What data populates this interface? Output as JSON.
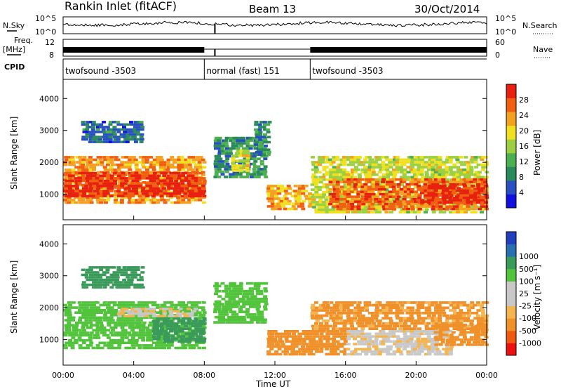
{
  "header": {
    "station": "Rankin Inlet (fitACF)",
    "beam": "Beam 13",
    "date": "30/Oct/2014"
  },
  "aux_panels": {
    "nsky_label": "N.Sky",
    "nsearch_label": "N.Search",
    "noise_tick_top": "10^5",
    "noise_tick_bottom": "10^0",
    "freq_label_1": "Freq.",
    "freq_label_2": "[MHz]",
    "freq_tick_top": "12",
    "freq_tick_bottom": "8",
    "nave_label": "Nave",
    "nave_tick_top": "60",
    "nave_tick_bottom": "0",
    "cpid_label": "CPID"
  },
  "cpid_segments": [
    {
      "label": "twofsound -3503",
      "start_hour": 0.0,
      "end_hour": 8.0
    },
    {
      "label": "normal (fast) 151",
      "start_hour": 8.0,
      "end_hour": 14.0
    },
    {
      "label": "twofsound -3503",
      "start_hour": 14.0,
      "end_hour": 24.0
    }
  ],
  "colors": {
    "power_scale": [
      "#1010e0",
      "#2850c0",
      "#2a8a5a",
      "#4caf50",
      "#9cd040",
      "#f0e020",
      "#f4a020",
      "#f06010",
      "#e82010"
    ],
    "velocity_scale": [
      "#ee1010",
      "#f05a10",
      "#f09028",
      "#f4b450",
      "#c8c8c8",
      "#c8c8c8",
      "#52c43c",
      "#3a9a5a",
      "#2a70b0",
      "#2040c0"
    ]
  },
  "chart_data": [
    {
      "type": "heatmap",
      "name": "power",
      "xlabel": "",
      "ylabel": "Slant Range [km]",
      "xlim_hours": [
        0,
        24
      ],
      "ylim_km": [
        200,
        4600
      ],
      "yticks": [
        1000,
        2000,
        3000,
        4000
      ],
      "colorbar_label": "Power [dB]",
      "colorbar_ticks": [
        4,
        8,
        12,
        16,
        20,
        24,
        28
      ],
      "colorbar_range": [
        0,
        32
      ],
      "regions": [
        {
          "t0": 0.0,
          "t1": 8.0,
          "r0": 700,
          "r1": 2200,
          "value": 24
        },
        {
          "t0": 0.0,
          "t1": 8.0,
          "r0": 900,
          "r1": 1700,
          "value": 30
        },
        {
          "t0": 1.0,
          "t1": 4.5,
          "r0": 2600,
          "r1": 3300,
          "value": 7
        },
        {
          "t0": 8.5,
          "t1": 11.5,
          "r0": 1500,
          "r1": 2800,
          "value": 10
        },
        {
          "t0": 9.5,
          "t1": 10.5,
          "r0": 1700,
          "r1": 2400,
          "value": 18
        },
        {
          "t0": 10.8,
          "t1": 11.7,
          "r0": 2200,
          "r1": 3300,
          "value": 9
        },
        {
          "t0": 11.5,
          "t1": 14.0,
          "r0": 500,
          "r1": 1300,
          "value": 22
        },
        {
          "t0": 14.0,
          "t1": 24.0,
          "r0": 400,
          "r1": 2200,
          "value": 18
        },
        {
          "t0": 15.0,
          "t1": 24.0,
          "r0": 500,
          "r1": 1500,
          "value": 27
        },
        {
          "t0": 20.0,
          "t1": 24.0,
          "r0": 700,
          "r1": 1300,
          "value": 30
        }
      ]
    },
    {
      "type": "heatmap",
      "name": "velocity",
      "xlabel": "Time UT",
      "ylabel": "Slant Range [km]",
      "xlim_hours": [
        0,
        24
      ],
      "xticks": [
        "00:00",
        "04:00",
        "08:00",
        "12:00",
        "16:00",
        "20:00",
        "00:00"
      ],
      "ylim_km": [
        200,
        4600
      ],
      "yticks": [
        1000,
        2000,
        3000,
        4000
      ],
      "colorbar_label": "Velocity [m s⁻¹]",
      "colorbar_ticks": [
        -1000,
        -500,
        -100,
        -25,
        25,
        100,
        500,
        1000
      ],
      "regions": [
        {
          "t0": 0.0,
          "t1": 8.0,
          "r0": 700,
          "r1": 2200,
          "value": 300
        },
        {
          "t0": 5.0,
          "t1": 8.0,
          "r0": 900,
          "r1": 1700,
          "value": 800
        },
        {
          "t0": 3.0,
          "t1": 7.5,
          "r0": 1700,
          "r1": 2000,
          "value": 0
        },
        {
          "t0": 1.0,
          "t1": 4.5,
          "r0": 2600,
          "r1": 3300,
          "value": 700
        },
        {
          "t0": 8.5,
          "t1": 11.5,
          "r0": 1500,
          "r1": 2800,
          "value": 300
        },
        {
          "t0": 11.5,
          "t1": 16.0,
          "r0": 500,
          "r1": 1300,
          "value": -300
        },
        {
          "t0": 14.0,
          "t1": 24.0,
          "r0": 1300,
          "r1": 2200,
          "value": -150
        },
        {
          "t0": 16.0,
          "t1": 22.0,
          "r0": 500,
          "r1": 1300,
          "value": 0
        },
        {
          "t0": 21.0,
          "t1": 24.0,
          "r0": 800,
          "r1": 1500,
          "value": -300
        }
      ]
    }
  ]
}
